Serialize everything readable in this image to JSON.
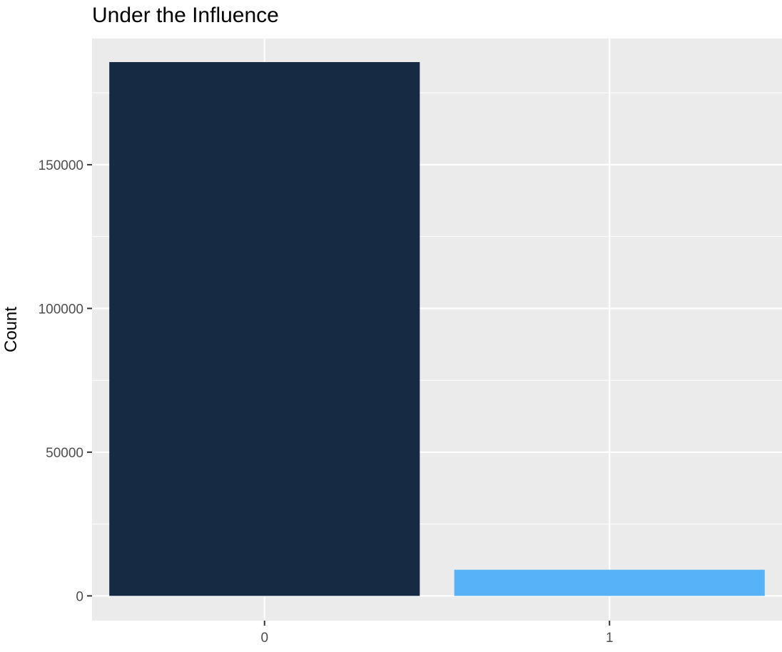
{
  "chart_data": {
    "type": "bar",
    "title": "Under the Influence",
    "xlabel": "",
    "ylabel": "Count",
    "categories": [
      "0",
      "1"
    ],
    "values": [
      185700,
      9100
    ],
    "ylim": [
      -8600,
      193900
    ],
    "yticks": [
      0,
      50000,
      100000,
      150000
    ],
    "ytick_labels": [
      "0",
      "50000",
      "100000",
      "150000"
    ],
    "colors": [
      "#162B43",
      "#58B2F6"
    ],
    "panel_background": "#EBEBEB",
    "grid": true,
    "legend": "none"
  }
}
